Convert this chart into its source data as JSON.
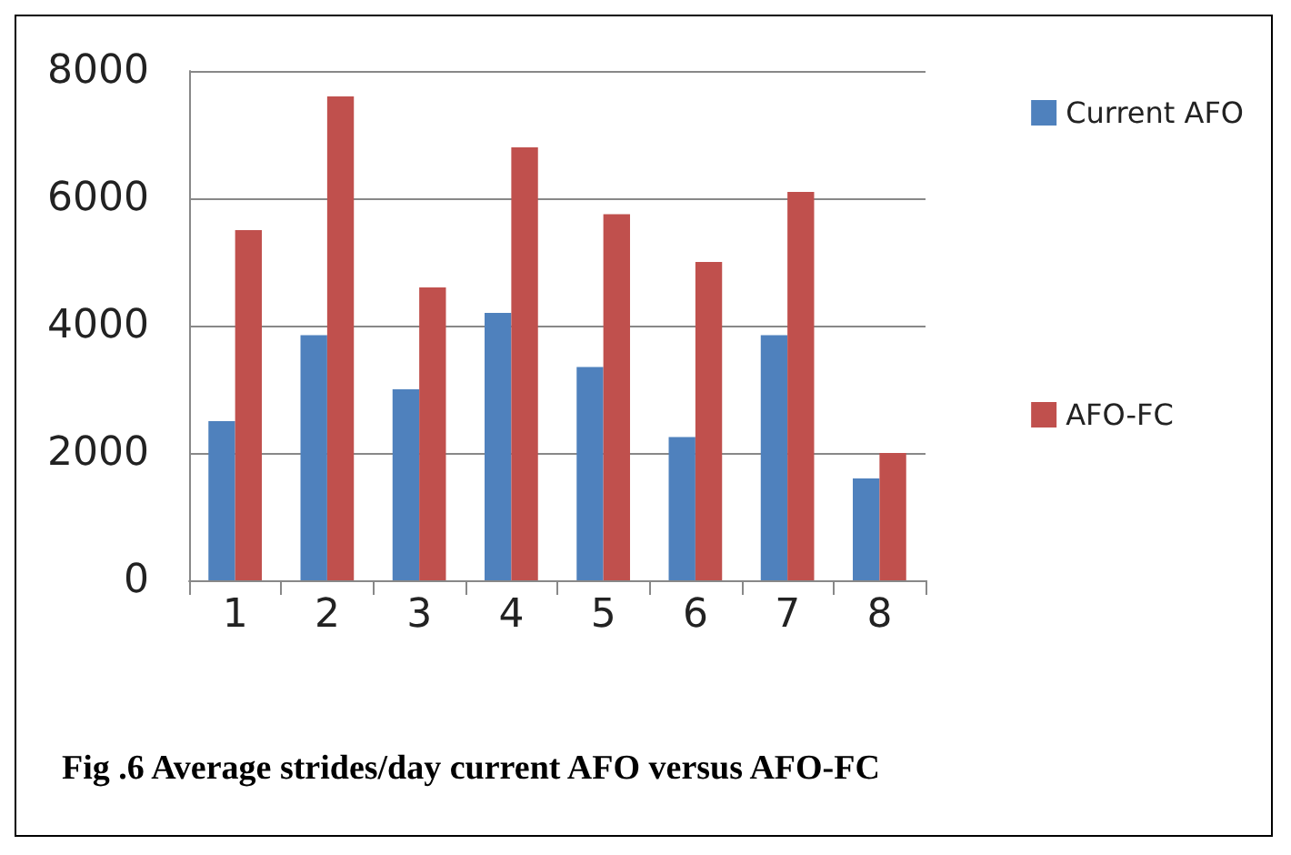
{
  "chart_data": {
    "type": "bar",
    "title": "Fig .6 Average strides/day current AFO versus AFO-FC",
    "categories": [
      "1",
      "2",
      "3",
      "4",
      "5",
      "6",
      "7",
      "8"
    ],
    "series": [
      {
        "name": "Current AFO",
        "color": "#4f81bd",
        "values": [
          2500,
          3850,
          3000,
          4200,
          3350,
          2250,
          3850,
          1600
        ]
      },
      {
        "name": "AFO-FC",
        "color": "#c0504d",
        "values": [
          5500,
          7600,
          4600,
          6800,
          5750,
          5000,
          6100,
          2000
        ]
      }
    ],
    "ylim": [
      0,
      8000
    ],
    "yticks": [
      0,
      2000,
      4000,
      6000,
      8000
    ],
    "grid": "y",
    "legend": "right"
  }
}
